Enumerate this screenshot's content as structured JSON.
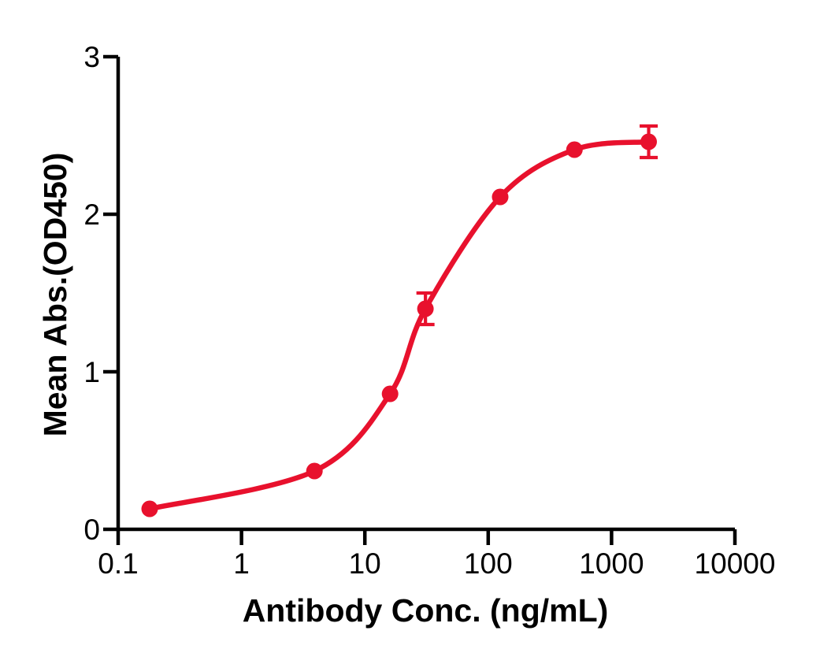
{
  "figure": {
    "background": "#ffffff",
    "text_color": "#000000"
  },
  "chart_data": {
    "type": "scatter",
    "subtype": "sigmoidal-dose-response-fit",
    "title": "",
    "xlabel": "Antibody Conc. (ng/mL)",
    "ylabel": "Mean Abs.(OD450)",
    "x_scale": "log10",
    "y_scale": "linear",
    "xlim": [
      0.1,
      10000
    ],
    "ylim": [
      0,
      3
    ],
    "x_ticks": [
      "0.1",
      "1",
      "10",
      "100",
      "1000",
      "10000"
    ],
    "y_ticks": [
      "0",
      "1",
      "2",
      "3"
    ],
    "grid": false,
    "legend_position": "none",
    "axis_color": "#000000",
    "series": [
      {
        "color": "#e8112d",
        "marker": "circle",
        "line": "smooth-fit",
        "points": [
          {
            "x": 0.18,
            "y": 0.13,
            "err": 0
          },
          {
            "x": 3.9,
            "y": 0.37,
            "err": 0
          },
          {
            "x": 16,
            "y": 0.86,
            "err": 0
          },
          {
            "x": 31,
            "y": 1.4,
            "err": 0.1
          },
          {
            "x": 125,
            "y": 2.11,
            "err": 0
          },
          {
            "x": 500,
            "y": 2.41,
            "err": 0
          },
          {
            "x": 2000,
            "y": 2.46,
            "err": 0.1
          }
        ]
      }
    ]
  }
}
